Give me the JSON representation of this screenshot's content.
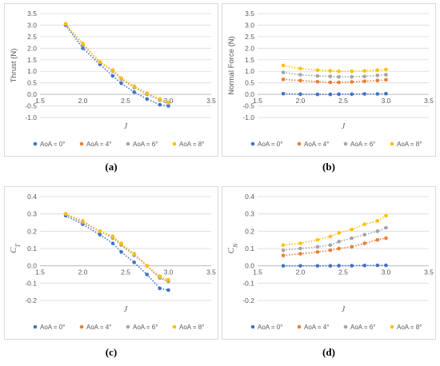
{
  "colors": {
    "aoa0": "#4472c4",
    "aoa4": "#ed7d31",
    "aoa6": "#a5a5a5",
    "aoa8": "#ffc000"
  },
  "legend": [
    "AoA = 0°",
    "AoA = 4°",
    "AoA = 6°",
    "AoA = 8°"
  ],
  "chart_data": [
    {
      "id": "a",
      "panel_label": "(a)",
      "type": "scatter",
      "title": "",
      "xlabel": "J",
      "ylabel": "Thrust (N)",
      "xlim": [
        1.5,
        3.5
      ],
      "xticks": [
        "1.5",
        "2.0",
        "2.5",
        "3.0",
        "3.5"
      ],
      "ylim": [
        -1.0,
        3.5
      ],
      "yticks": [
        "-1.0",
        "-0.5",
        "0.0",
        "0.5",
        "1.0",
        "1.5",
        "2.0",
        "2.5",
        "3.0",
        "3.5"
      ],
      "x": [
        1.8,
        2.0,
        2.2,
        2.35,
        2.45,
        2.6,
        2.75,
        2.9,
        3.0
      ],
      "series": [
        {
          "name": "AoA = 0°",
          "values": [
            3.0,
            2.0,
            1.3,
            0.8,
            0.48,
            0.1,
            -0.2,
            -0.45,
            -0.5
          ]
        },
        {
          "name": "AoA = 4°",
          "values": [
            3.05,
            2.15,
            1.4,
            1.05,
            0.7,
            0.35,
            0.05,
            -0.25,
            -0.35
          ]
        },
        {
          "name": "AoA = 6°",
          "values": [
            3.05,
            2.15,
            1.4,
            1.0,
            0.65,
            0.3,
            0.0,
            -0.25,
            -0.38
          ]
        },
        {
          "name": "AoA = 8°",
          "values": [
            3.05,
            2.2,
            1.4,
            1.05,
            0.7,
            0.35,
            0.05,
            -0.2,
            -0.35
          ]
        }
      ]
    },
    {
      "id": "b",
      "panel_label": "(b)",
      "type": "scatter",
      "title": "",
      "xlabel": "J",
      "ylabel": "Normal Force (N)",
      "xlim": [
        1.5,
        3.5
      ],
      "xticks": [
        "1.5",
        "2.0",
        "2.5",
        "3.0",
        "3.5"
      ],
      "ylim": [
        -1.0,
        3.5
      ],
      "yticks": [
        "-1.0",
        "-0.5",
        "0.0",
        "0.5",
        "1.0",
        "1.5",
        "2.0",
        "2.5",
        "3.0",
        "3.5"
      ],
      "x": [
        1.8,
        2.0,
        2.2,
        2.35,
        2.45,
        2.6,
        2.75,
        2.9,
        3.0
      ],
      "series": [
        {
          "name": "AoA = 0°",
          "values": [
            0.03,
            0.01,
            0.0,
            0.0,
            0.01,
            0.01,
            0.02,
            0.02,
            0.03
          ]
        },
        {
          "name": "AoA = 4°",
          "values": [
            0.65,
            0.6,
            0.55,
            0.52,
            0.52,
            0.54,
            0.57,
            0.6,
            0.63
          ]
        },
        {
          "name": "AoA = 6°",
          "values": [
            0.95,
            0.85,
            0.8,
            0.78,
            0.76,
            0.76,
            0.78,
            0.82,
            0.85
          ]
        },
        {
          "name": "AoA = 8°",
          "values": [
            1.25,
            1.12,
            1.05,
            1.02,
            1.0,
            1.0,
            1.02,
            1.05,
            1.08
          ]
        }
      ]
    },
    {
      "id": "c",
      "panel_label": "(c)",
      "type": "scatter",
      "title": "",
      "xlabel": "J",
      "ylabel": "C_T",
      "xlim": [
        1.5,
        3.5
      ],
      "xticks": [
        "1.5",
        "2.0",
        "2.5",
        "3.0",
        "3.5"
      ],
      "ylim": [
        -0.2,
        0.4
      ],
      "yticks": [
        "-0.2",
        "-0.1",
        "0.0",
        "0.1",
        "0.2",
        "0.3",
        "0.4"
      ],
      "x": [
        1.8,
        2.0,
        2.2,
        2.35,
        2.45,
        2.6,
        2.75,
        2.9,
        3.0
      ],
      "series": [
        {
          "name": "AoA = 0°",
          "values": [
            0.29,
            0.24,
            0.18,
            0.13,
            0.08,
            0.02,
            -0.05,
            -0.13,
            -0.14
          ]
        },
        {
          "name": "AoA = 4°",
          "values": [
            0.3,
            0.25,
            0.2,
            0.17,
            0.12,
            0.07,
            0.0,
            -0.07,
            -0.09
          ]
        },
        {
          "name": "AoA = 6°",
          "values": [
            0.3,
            0.25,
            0.2,
            0.16,
            0.12,
            0.06,
            0.0,
            -0.07,
            -0.09
          ]
        },
        {
          "name": "AoA = 8°",
          "values": [
            0.3,
            0.26,
            0.2,
            0.17,
            0.13,
            0.07,
            0.0,
            -0.06,
            -0.08
          ]
        }
      ]
    },
    {
      "id": "d",
      "panel_label": "(d)",
      "type": "scatter",
      "title": "",
      "xlabel": "J",
      "ylabel": "C_N",
      "xlim": [
        1.5,
        3.5
      ],
      "xticks": [
        "1.5",
        "2.0",
        "2.5",
        "3.0",
        "3.5"
      ],
      "ylim": [
        -0.2,
        0.4
      ],
      "yticks": [
        "-0.2",
        "-0.1",
        "0.0",
        "0.1",
        "0.2",
        "0.3",
        "0.4"
      ],
      "x": [
        1.8,
        2.0,
        2.2,
        2.35,
        2.45,
        2.6,
        2.75,
        2.9,
        3.0
      ],
      "series": [
        {
          "name": "AoA = 0°",
          "values": [
            0.0,
            0.0,
            0.0,
            0.0,
            0.001,
            0.001,
            0.002,
            0.003,
            0.003
          ]
        },
        {
          "name": "AoA = 4°",
          "values": [
            0.06,
            0.07,
            0.08,
            0.09,
            0.1,
            0.11,
            0.13,
            0.15,
            0.16
          ]
        },
        {
          "name": "AoA = 6°",
          "values": [
            0.09,
            0.1,
            0.11,
            0.12,
            0.14,
            0.16,
            0.18,
            0.2,
            0.22
          ]
        },
        {
          "name": "AoA = 8°",
          "values": [
            0.12,
            0.13,
            0.15,
            0.17,
            0.19,
            0.21,
            0.24,
            0.26,
            0.29
          ]
        }
      ]
    }
  ]
}
